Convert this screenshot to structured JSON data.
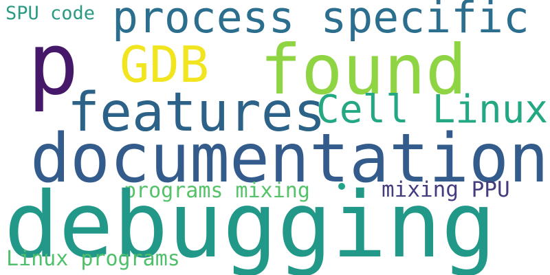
{
  "words": {
    "spu_code": {
      "text": "SPU code",
      "color": "#2a9a82"
    },
    "process_specific": {
      "text": "process specific",
      "color": "#2c6e8e"
    },
    "p": {
      "text": "p",
      "color": "#46186a"
    },
    "gdb": {
      "text": "GDB",
      "color": "#f0e51f"
    },
    "found": {
      "text": "found",
      "color": "#8fd443"
    },
    "features": {
      "text": "features",
      "color": "#2d6288"
    },
    "cell_linux": {
      "text": "Cell Linux",
      "color": "#23a883"
    },
    "documentation": {
      "text": "documentation",
      "color": "#335c8c"
    },
    "programs_mixing": {
      "text": "programs mixing",
      "color": "#54c268"
    },
    "mixing_ppu": {
      "text": "mixing PPU",
      "color": "#433c7f"
    },
    "debugging": {
      "text": "debugging",
      "color": "#229888"
    },
    "linux_programs": {
      "text": "Linux programs",
      "color": "#4ebf6a"
    },
    "dot": {
      "color": "#22a38a"
    }
  }
}
